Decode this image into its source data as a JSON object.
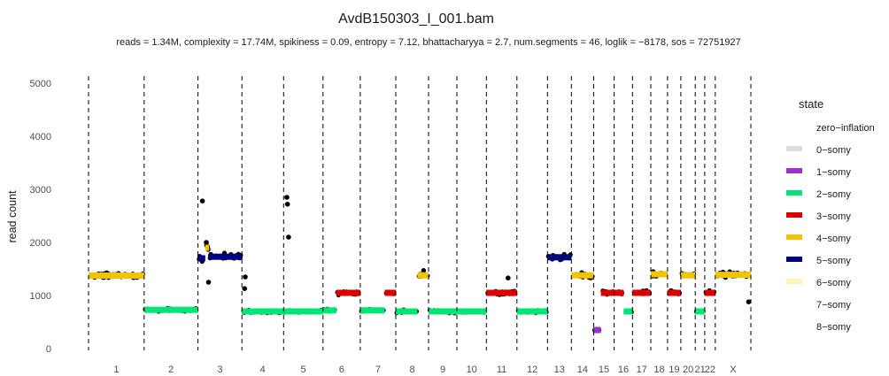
{
  "chart_data": {
    "type": "scatter",
    "title": "AvdB150303_I_001.bam",
    "subtitle": "reads = 1.34M, complexity = 17.74M,  spikiness = 0.09,  entropy = 7.12,  bhattacharyya = 2.7, num.segments = 46, loglik = −8178, sos = 72751927",
    "xlabel": "",
    "ylabel": "read count",
    "ylim": [
      0,
      5000
    ],
    "yticks": [
      "0",
      "1000",
      "2000",
      "3000",
      "4000",
      "5000"
    ],
    "grid": false,
    "legend_position": "right",
    "legend": {
      "title": "state",
      "entries": [
        {
          "label": "zero−inflation",
          "color": ""
        },
        {
          "label": "0−somy",
          "color": "#dddddd"
        },
        {
          "label": "1−somy",
          "color": "#9933cc"
        },
        {
          "label": "2−somy",
          "color": "#00e676"
        },
        {
          "label": "3−somy",
          "color": "#dd0000"
        },
        {
          "label": "4−somy",
          "color": "#f0c400"
        },
        {
          "label": "5−somy",
          "color": "#000080"
        },
        {
          "label": "6−somy",
          "color": "#fff5bb"
        },
        {
          "label": "7−somy",
          "color": ""
        },
        {
          "label": "8−somy",
          "color": ""
        }
      ]
    },
    "chromosomes": [
      {
        "label": "1",
        "start": 0,
        "end": 1.0
      },
      {
        "label": "2",
        "start": 1.0,
        "end": 1.97
      },
      {
        "label": "3",
        "start": 1.97,
        "end": 2.76
      },
      {
        "label": "4",
        "start": 2.76,
        "end": 3.51
      },
      {
        "label": "5",
        "start": 3.51,
        "end": 4.22
      },
      {
        "label": "6",
        "start": 4.22,
        "end": 4.89
      },
      {
        "label": "7",
        "start": 4.89,
        "end": 5.53
      },
      {
        "label": "8",
        "start": 5.53,
        "end": 6.12
      },
      {
        "label": "9",
        "start": 6.12,
        "end": 6.63
      },
      {
        "label": "10",
        "start": 6.63,
        "end": 7.16
      },
      {
        "label": "11",
        "start": 7.16,
        "end": 7.71
      },
      {
        "label": "12",
        "start": 7.71,
        "end": 8.26
      },
      {
        "label": "13",
        "start": 8.26,
        "end": 8.69
      },
      {
        "label": "14",
        "start": 8.69,
        "end": 9.09
      },
      {
        "label": "15",
        "start": 9.09,
        "end": 9.46
      },
      {
        "label": "16",
        "start": 9.46,
        "end": 9.79
      },
      {
        "label": "17",
        "start": 9.79,
        "end": 10.12
      },
      {
        "label": "18",
        "start": 10.12,
        "end": 10.42
      },
      {
        "label": "19",
        "start": 10.42,
        "end": 10.66
      },
      {
        "label": "20",
        "start": 10.66,
        "end": 10.92
      },
      {
        "label": "21",
        "start": 10.92,
        "end": 11.09
      },
      {
        "label": "22",
        "start": 11.09,
        "end": 11.28
      },
      {
        "label": "X",
        "start": 11.28,
        "end": 11.92
      }
    ],
    "segments": [
      {
        "start": 0,
        "end": 1.0,
        "value": 1375,
        "state": "4−somy"
      },
      {
        "start": 1.0,
        "end": 1.97,
        "value": 730,
        "state": "2−somy"
      },
      {
        "start": 1.97,
        "end": 2.1,
        "value": 1700,
        "state": "5−somy"
      },
      {
        "start": 2.1,
        "end": 2.17,
        "value": 1900,
        "state": "4−somy"
      },
      {
        "start": 2.17,
        "end": 2.76,
        "value": 1730,
        "state": "5−somy"
      },
      {
        "start": 2.76,
        "end": 3.51,
        "value": 700,
        "state": "2−somy"
      },
      {
        "start": 3.51,
        "end": 4.22,
        "value": 700,
        "state": "2−somy"
      },
      {
        "start": 4.22,
        "end": 4.46,
        "value": 720,
        "state": "2−somy"
      },
      {
        "start": 4.46,
        "end": 4.89,
        "value": 1050,
        "state": "3−somy"
      },
      {
        "start": 4.89,
        "end": 5.33,
        "value": 720,
        "state": "2−somy"
      },
      {
        "start": 5.33,
        "end": 5.53,
        "value": 1050,
        "state": "3−somy"
      },
      {
        "start": 5.53,
        "end": 5.92,
        "value": 700,
        "state": "2−somy"
      },
      {
        "start": 5.92,
        "end": 6.12,
        "value": 1380,
        "state": "4−somy"
      },
      {
        "start": 6.12,
        "end": 6.63,
        "value": 700,
        "state": "2−somy"
      },
      {
        "start": 6.63,
        "end": 7.16,
        "value": 700,
        "state": "2−somy"
      },
      {
        "start": 7.16,
        "end": 7.71,
        "value": 1050,
        "state": "3−somy"
      },
      {
        "start": 7.71,
        "end": 8.26,
        "value": 700,
        "state": "2−somy"
      },
      {
        "start": 8.26,
        "end": 8.69,
        "value": 1720,
        "state": "5−somy"
      },
      {
        "start": 8.69,
        "end": 9.09,
        "value": 1380,
        "state": "4−somy"
      },
      {
        "start": 9.09,
        "end": 9.22,
        "value": 350,
        "state": "1−somy"
      },
      {
        "start": 9.22,
        "end": 9.46,
        "value": 1050,
        "state": "3−somy"
      },
      {
        "start": 9.46,
        "end": 9.63,
        "value": 1050,
        "state": "3−somy"
      },
      {
        "start": 9.63,
        "end": 9.79,
        "value": 700,
        "state": "2−somy"
      },
      {
        "start": 9.79,
        "end": 10.12,
        "value": 1050,
        "state": "3−somy"
      },
      {
        "start": 10.12,
        "end": 10.42,
        "value": 1400,
        "state": "4−somy"
      },
      {
        "start": 10.42,
        "end": 10.66,
        "value": 1050,
        "state": "3−somy"
      },
      {
        "start": 10.66,
        "end": 10.92,
        "value": 1380,
        "state": "4−somy"
      },
      {
        "start": 10.92,
        "end": 11.09,
        "value": 700,
        "state": "2−somy"
      },
      {
        "start": 11.09,
        "end": 11.28,
        "value": 1050,
        "state": "3−somy"
      },
      {
        "start": 11.28,
        "end": 11.92,
        "value": 1390,
        "state": "4−somy"
      }
    ],
    "outliers": [
      {
        "x": 2.05,
        "y": 2780
      },
      {
        "x": 2.12,
        "y": 2000
      },
      {
        "x": 2.16,
        "y": 1250
      },
      {
        "x": 2.82,
        "y": 1350
      },
      {
        "x": 2.81,
        "y": 1130
      },
      {
        "x": 3.57,
        "y": 2850
      },
      {
        "x": 3.58,
        "y": 2720
      },
      {
        "x": 3.6,
        "y": 2100
      },
      {
        "x": 6.03,
        "y": 1470
      },
      {
        "x": 7.55,
        "y": 1330
      },
      {
        "x": 11.88,
        "y": 880
      }
    ]
  }
}
